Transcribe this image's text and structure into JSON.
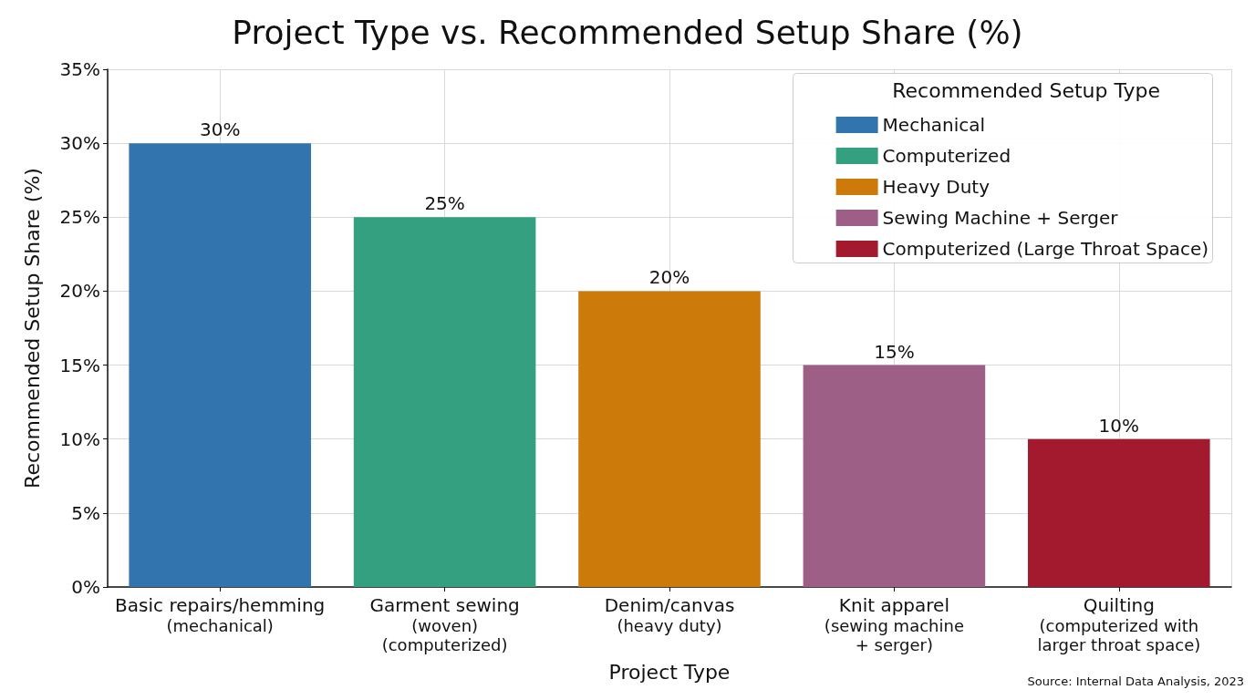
{
  "chart_data": {
    "type": "bar",
    "title": "Project Type vs. Recommended Setup Share (%)",
    "xlabel": "Project Type",
    "ylabel": "Recommended Setup Share (%)",
    "legend_title": "Recommended Setup Type",
    "categories": [
      "Basic repairs/hemming\n(mechanical)",
      "Garment sewing\n(woven)\n(computerized)",
      "Denim/canvas\n(heavy duty)",
      "Knit apparel\n(sewing machine\n+ serger)",
      "Quilting\n(computerized with\nlarger throat space)"
    ],
    "series": [
      {
        "name": "Mechanical",
        "color": "#3274ad",
        "values": [
          30,
          null,
          null,
          null,
          null
        ],
        "value_labels": [
          "30%",
          null,
          null,
          null,
          null
        ]
      },
      {
        "name": "Computerized",
        "color": "#35a07f",
        "values": [
          null,
          25,
          null,
          null,
          null
        ],
        "value_labels": [
          null,
          "25%",
          null,
          null,
          null
        ]
      },
      {
        "name": "Heavy Duty",
        "color": "#cc7b0a",
        "values": [
          null,
          null,
          20,
          null,
          null
        ],
        "value_labels": [
          null,
          null,
          "20%",
          null,
          null
        ]
      },
      {
        "name": "Sewing Machine + Serger",
        "color": "#9e5f87",
        "values": [
          null,
          null,
          null,
          15,
          null
        ],
        "value_labels": [
          null,
          null,
          null,
          "15%",
          null
        ]
      },
      {
        "name": "Computerized (Large Throat Space)",
        "color": "#a31a2f",
        "values": [
          null,
          null,
          null,
          null,
          10
        ],
        "value_labels": [
          null,
          null,
          null,
          null,
          "10%"
        ]
      }
    ],
    "ylim": [
      0,
      35
    ],
    "yticks": [
      {
        "value": 0,
        "label": "0%"
      },
      {
        "value": 5,
        "label": "5%"
      },
      {
        "value": 10,
        "label": "10%"
      },
      {
        "value": 15,
        "label": "15%"
      },
      {
        "value": 20,
        "label": "20%"
      },
      {
        "value": 25,
        "label": "25%"
      },
      {
        "value": 30,
        "label": "30%"
      },
      {
        "value": 35,
        "label": "35%"
      }
    ],
    "grid": true,
    "legend": "top right",
    "annotations": [
      "Source: Internal Data Analysis, 2023"
    ]
  }
}
